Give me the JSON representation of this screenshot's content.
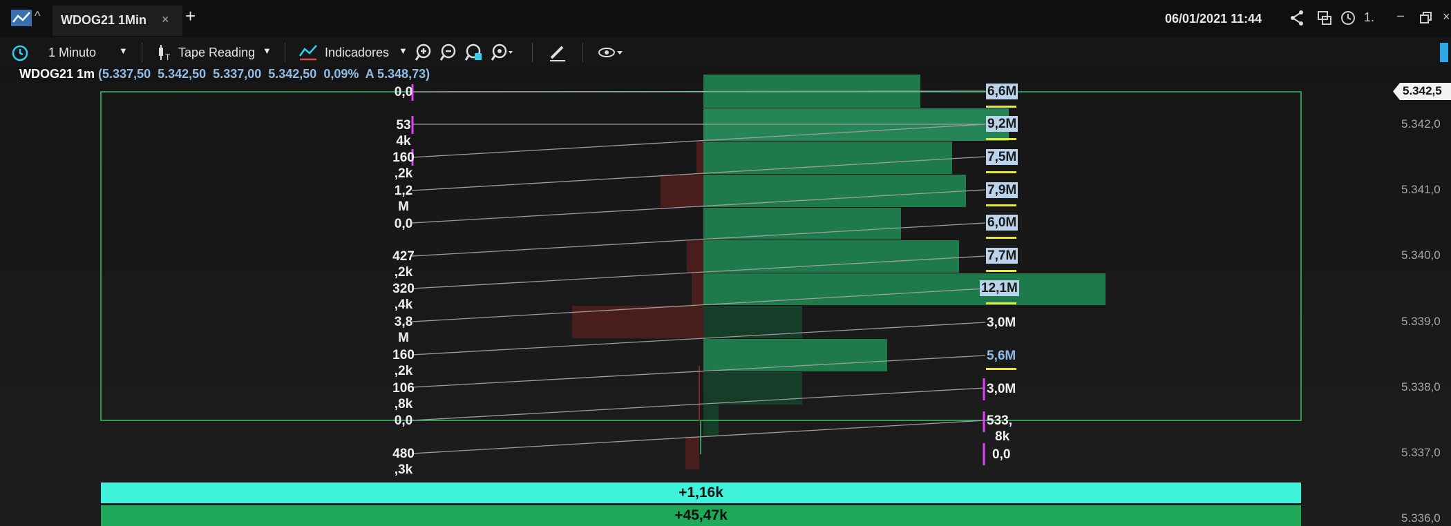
{
  "tab": {
    "title": "WDOG21 1Min",
    "close": "×",
    "add": "+"
  },
  "header": {
    "datetime": "06/01/2021 11:44",
    "num": "1."
  },
  "toolbar": {
    "interval": "1 Minuto",
    "tape": "Tape Reading",
    "indicators": "Indicadores"
  },
  "info": {
    "symbol": "WDOG21 1m",
    "ohlc": "(5.337,50  5.342,50  5.337,00  5.342,50  0,09%  A 5.348,73)"
  },
  "prices": {
    "current": "5.342,5",
    "levels": [
      "5.342,0",
      "5.341,0",
      "5.340,0",
      "5.339,0",
      "5.338,0",
      "5.337,0",
      "5.336,0"
    ]
  },
  "left_labels": [
    {
      "l1": "0,0",
      "l2": ""
    },
    {
      "l1": "53",
      "l2": "4k"
    },
    {
      "l1": "160",
      "l2": ",2k"
    },
    {
      "l1": "1,2",
      "l2": "M"
    },
    {
      "l1": "0,0",
      "l2": ""
    },
    {
      "l1": "427",
      "l2": ",2k"
    },
    {
      "l1": "320",
      "l2": ",4k"
    },
    {
      "l1": "3,8",
      "l2": "M"
    },
    {
      "l1": "160",
      "l2": ",2k"
    },
    {
      "l1": "106",
      "l2": ",8k"
    },
    {
      "l1": "0,0",
      "l2": ""
    },
    {
      "l1": "480",
      "l2": ",3k"
    }
  ],
  "right_labels": [
    "6,6M",
    "9,2M",
    "7,5M",
    "7,9M",
    "6,0M",
    "7,7M",
    "12,1M",
    "3,0M",
    "5,6M",
    "3,0M",
    "533,",
    "8k",
    "0,0"
  ],
  "summary": {
    "row1": "+1,16k",
    "row2": "+45,47k"
  },
  "colors": {
    "cyan": "#3ef2dc",
    "green": "#1faa5a",
    "buy": "#1f7a4b",
    "sell": "#4a1d1d",
    "highlight": "#b9d3ea"
  }
}
